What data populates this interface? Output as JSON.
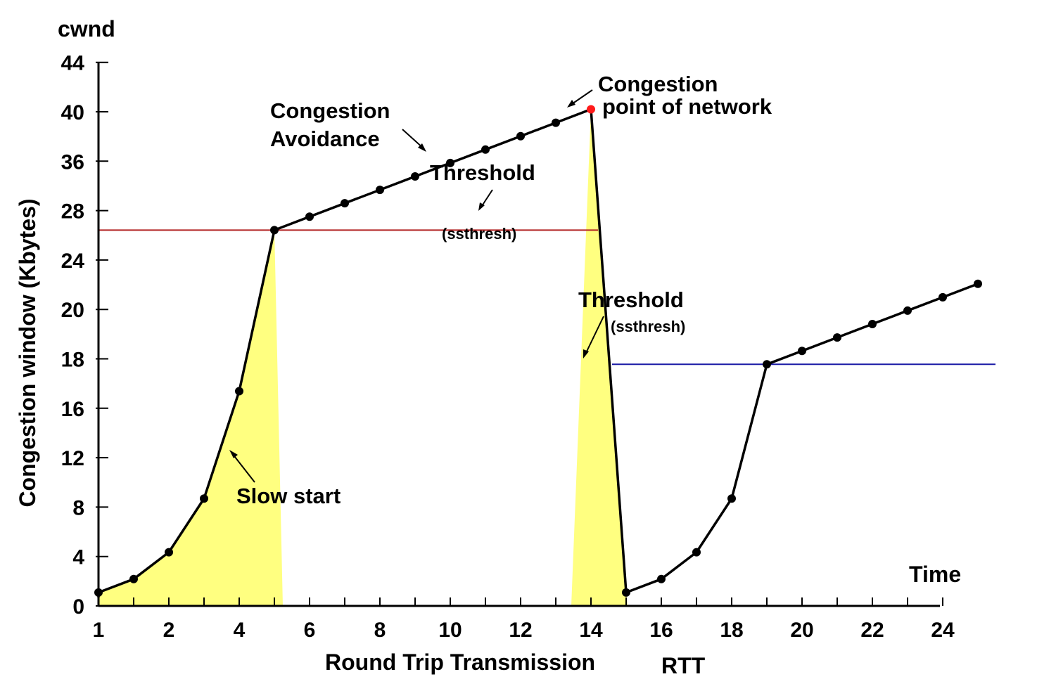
{
  "chart_data": {
    "type": "line",
    "title": "",
    "ylabel": "Congestion window (Kbytes)",
    "ylabel_top": "cwnd",
    "xlabel": "Round Trip Transmission",
    "xlabel_unit": "RTT",
    "xlabel_end": "Time",
    "x_tick_labels": [
      "1",
      "2",
      "4",
      "6",
      "8",
      "10",
      "12",
      "14",
      "16",
      "18",
      "20",
      "22",
      "24"
    ],
    "y_tick_labels": [
      "0",
      "4",
      "8",
      "12",
      "16",
      "18",
      "20",
      "24",
      "28",
      "36",
      "40",
      "44"
    ],
    "series": [
      {
        "points": [
          [
            1,
            1
          ],
          [
            2,
            2
          ],
          [
            3,
            4
          ],
          [
            4,
            8
          ],
          [
            5,
            16
          ],
          [
            6,
            28
          ],
          [
            7,
            29
          ],
          [
            8,
            30
          ],
          [
            9,
            31
          ],
          [
            10,
            32
          ],
          [
            11,
            33
          ],
          [
            12,
            34
          ],
          [
            13,
            35
          ],
          [
            14,
            36
          ],
          [
            15,
            37
          ],
          [
            16,
            1
          ],
          [
            17,
            2
          ],
          [
            18,
            4
          ],
          [
            19,
            8
          ],
          [
            20,
            18
          ],
          [
            21,
            19
          ],
          [
            22,
            20
          ],
          [
            23,
            21
          ],
          [
            24,
            22
          ],
          [
            25,
            23
          ],
          [
            26,
            24
          ]
        ]
      }
    ],
    "congestion_point": [
      15,
      37
    ],
    "thresholds": [
      {
        "value": 28,
        "color": "#b22222",
        "x_from": 1,
        "x_to": 15.2
      },
      {
        "value": 18,
        "color": "#1a1aa6",
        "x_from": 15.6,
        "x_to": 26.5
      }
    ],
    "highlight_color": "#ffff80",
    "annotations": {
      "congestion_avoidance": [
        "Congestion",
        "Avoidance"
      ],
      "congestion_point": [
        "Congestion",
        "point of network"
      ],
      "threshold_1": "Threshold",
      "threshold_1_sub": "(ssthresh)",
      "threshold_2": "Threshold",
      "threshold_2_sub": "(ssthresh)",
      "slow_start": "Slow start"
    }
  }
}
